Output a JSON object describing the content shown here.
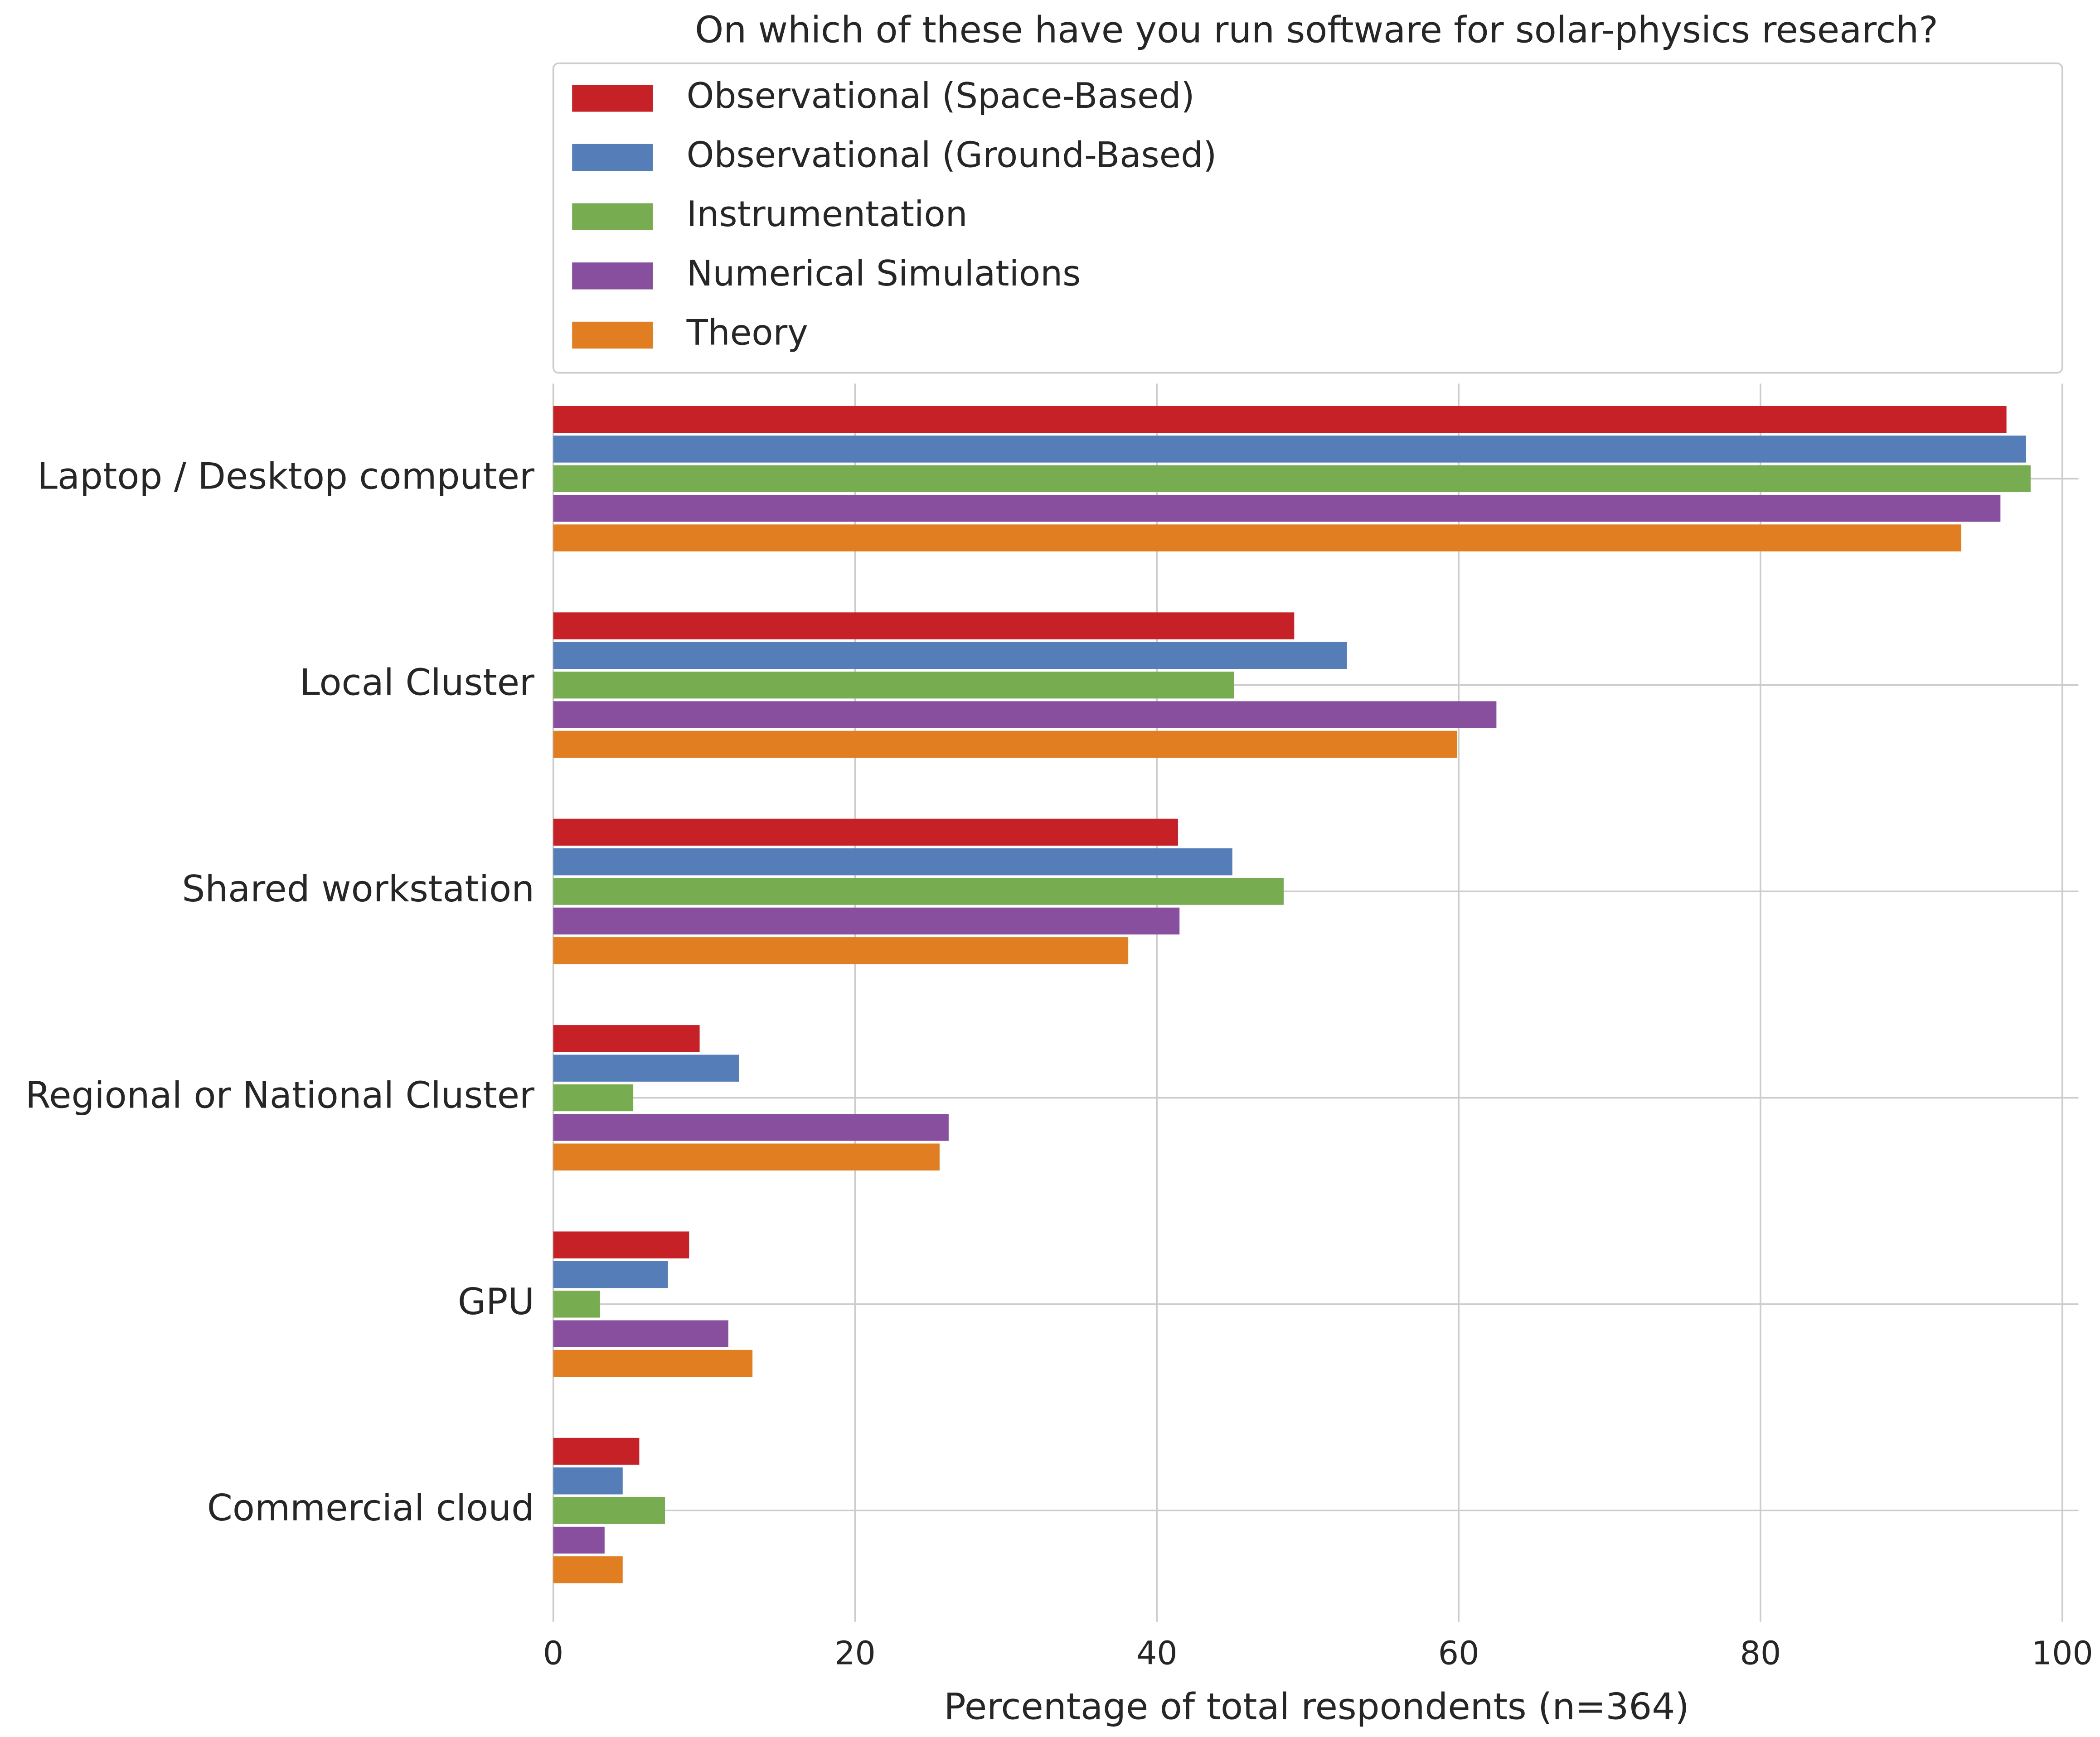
{
  "chart_data": {
    "type": "bar",
    "orientation": "horizontal",
    "title": "On which of these have you run software for solar-physics research?",
    "x_label": "Percentage of total respondents (n=364)",
    "categories": [
      "Laptop / Desktop computer",
      "Local Cluster",
      "Shared workstation",
      "Regional or National Cluster",
      "GPU",
      "Commercial cloud"
    ],
    "series": [
      {
        "name": "Observational (Space-Based)",
        "color": "#c52126",
        "values": [
          96.3,
          49.1,
          41.4,
          9.7,
          9.0,
          5.7
        ]
      },
      {
        "name": "Observational (Ground-Based)",
        "color": "#557db8",
        "values": [
          97.6,
          52.6,
          45.0,
          12.3,
          7.6,
          4.6
        ]
      },
      {
        "name": "Instrumentation",
        "color": "#77ac50",
        "values": [
          97.9,
          45.1,
          48.4,
          5.3,
          3.1,
          7.4
        ]
      },
      {
        "name": "Numerical Simulations",
        "color": "#874f9e",
        "values": [
          95.9,
          62.5,
          41.5,
          26.2,
          11.6,
          3.4
        ]
      },
      {
        "name": "Theory",
        "color": "#e17e21",
        "values": [
          93.3,
          59.9,
          38.1,
          25.6,
          13.2,
          4.6
        ]
      }
    ],
    "xlim": [
      0,
      100
    ],
    "xticks": [
      0,
      20,
      40,
      60,
      80,
      100
    ],
    "grid": true,
    "legend": "top"
  }
}
